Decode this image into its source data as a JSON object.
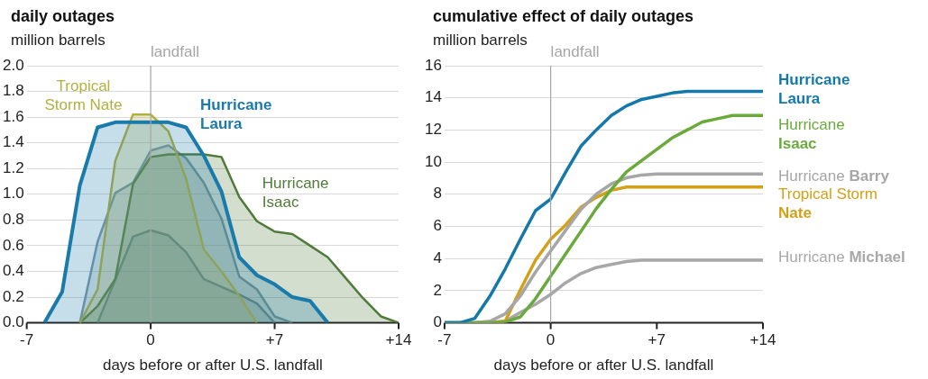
{
  "chart_data": [
    {
      "type": "area",
      "title": "daily outages",
      "ylabel": "million barrels",
      "xlabel": "days before or after U.S. landfall",
      "xlim": [
        -7,
        14
      ],
      "xticks": [
        -7,
        0,
        {
          "value": 7,
          "label": "+7"
        },
        {
          "value": 14,
          "label": "+14"
        }
      ],
      "ylim": [
        0,
        2
      ],
      "yticks": [
        {
          "value": 0,
          "label": "0.0"
        },
        {
          "value": 0.2,
          "label": "0.2"
        },
        {
          "value": 0.4,
          "label": "0.4"
        },
        {
          "value": 0.6,
          "label": "0.6"
        },
        {
          "value": 0.8,
          "label": "0.8"
        },
        {
          "value": 1,
          "label": "1.0"
        },
        {
          "value": 1.2,
          "label": "1.2"
        },
        {
          "value": 1.4,
          "label": "1.4"
        },
        {
          "value": 1.6,
          "label": "1.6"
        },
        {
          "value": 1.8,
          "label": "1.8"
        },
        {
          "value": 2,
          "label": "2.0"
        }
      ],
      "grid": "y",
      "legend": false,
      "ref_lines": [
        {
          "axis": "x",
          "value": 0,
          "label": "landfall",
          "color": "#a6a6a6"
        }
      ],
      "series": [
        {
          "name": "Hurricane Laura",
          "color": "#1a7bab",
          "x": [
            -6,
            -5,
            -4,
            -3,
            -2,
            -1,
            0,
            1,
            2,
            3,
            4,
            5,
            6,
            7,
            8,
            9,
            10
          ],
          "values": [
            0,
            0.24,
            1.07,
            1.52,
            1.56,
            1.56,
            1.56,
            1.56,
            1.52,
            1.3,
            1.02,
            0.51,
            0.37,
            0.3,
            0.2,
            0.17,
            0
          ]
        },
        {
          "name": "Tropical Storm Nate",
          "color": "#b3b040",
          "x": [
            -4,
            -3,
            -2,
            -1,
            0,
            1,
            2,
            3,
            4,
            5,
            6
          ],
          "values": [
            0,
            0.26,
            1.26,
            1.62,
            1.62,
            1.49,
            1.12,
            0.57,
            0.4,
            0.21,
            0
          ]
        },
        {
          "name": "Hurricane Isaac",
          "color": "#4f7a3a",
          "x": [
            -4,
            -3,
            -2,
            -1,
            0,
            1,
            2,
            3,
            4,
            5,
            6,
            7,
            8,
            9,
            10,
            11,
            12,
            13,
            14
          ],
          "values": [
            0,
            0.13,
            0.34,
            1.08,
            1.29,
            1.31,
            1.31,
            1.31,
            1.29,
            0.98,
            0.79,
            0.71,
            0.69,
            0.6,
            0.51,
            0.35,
            0.19,
            0.05,
            0
          ]
        },
        {
          "color": "#7d98a8",
          "x": [
            -4,
            -3,
            -2,
            -1,
            0,
            1,
            2,
            3,
            4,
            5,
            6,
            7,
            8
          ],
          "values": [
            0,
            0.63,
            1.01,
            1.09,
            1.34,
            1.38,
            1.28,
            1.09,
            0.81,
            0.36,
            0.26,
            0.05,
            0
          ]
        },
        {
          "color": "#6f8a92",
          "x": [
            -3,
            -1,
            0,
            1,
            2,
            3,
            4,
            5,
            6,
            7
          ],
          "values": [
            0,
            0.67,
            0.72,
            0.68,
            0.55,
            0.34,
            0.28,
            0.22,
            0.15,
            0
          ]
        }
      ]
    },
    {
      "type": "line",
      "title": "cumulative effect of daily outages",
      "ylabel": "million barrels",
      "xlabel": "days before or after U.S. landfall",
      "x": [
        -7,
        -6,
        -5,
        -4,
        -3,
        -2,
        -1,
        0,
        1,
        2,
        3,
        4,
        5,
        6,
        7,
        8,
        9,
        10,
        11,
        12,
        13,
        14
      ],
      "xlim": [
        -7,
        14
      ],
      "xticks": [
        {
          "value": -7,
          "label": "-7"
        },
        {
          "value": 0,
          "label": "0"
        },
        {
          "value": 7,
          "label": "+7"
        },
        {
          "value": 14,
          "label": "+14"
        }
      ],
      "ylim": [
        0,
        16
      ],
      "yticks": [
        0,
        2,
        4,
        6,
        8,
        10,
        12,
        14,
        16
      ],
      "grid": "y",
      "legend": false,
      "ref_lines": [
        {
          "axis": "x",
          "value": 0,
          "label": "landfall",
          "color": "#a6a6a6"
        }
      ],
      "series": [
        {
          "name": "Hurricane Laura",
          "color": "#1479a8",
          "values": [
            0,
            0,
            0.28,
            1.67,
            3.35,
            5.2,
            6.98,
            7.7,
            9.4,
            11,
            12,
            12.9,
            13.5,
            13.9,
            14.1,
            14.3,
            14.4,
            14.4,
            14.4,
            14.4,
            14.4,
            14.4
          ]
        },
        {
          "name": "Hurricane Isaac",
          "color": "#6aaa3c",
          "values": [
            0,
            0,
            0,
            0,
            0.05,
            0.37,
            1.5,
            2.9,
            4.3,
            5.7,
            7.1,
            8.3,
            9.4,
            10.1,
            10.8,
            11.5,
            12,
            12.5,
            12.7,
            12.9,
            12.9,
            12.9
          ]
        },
        {
          "name": "Hurricane Barry",
          "color": "#a6a6a6",
          "values": [
            0,
            0,
            0,
            0.1,
            0.56,
            1.67,
            3.16,
            4.47,
            5.77,
            7.07,
            8,
            8.65,
            9.02,
            9.2,
            9.27,
            9.27,
            9.27,
            9.27,
            9.27,
            9.27,
            9.27,
            9.27
          ]
        },
        {
          "name": "Tropical Storm Nate",
          "color": "#d4a017",
          "values": [
            null,
            null,
            0,
            0,
            0.1,
            2.05,
            3.9,
            5.2,
            6.1,
            7.2,
            7.8,
            8.25,
            8.45,
            8.45,
            8.45,
            8.45,
            8.45,
            8.45,
            8.45,
            8.45,
            8.45,
            8.45
          ]
        },
        {
          "name": "Hurricane Michael",
          "color": "#a8a8a8",
          "values": [
            0,
            0,
            0,
            0,
            0.1,
            0.65,
            1.15,
            1.77,
            2.5,
            3.07,
            3.44,
            3.63,
            3.81,
            3.9,
            3.9,
            3.9,
            3.9,
            3.9,
            3.9,
            3.9,
            3.9,
            3.9
          ]
        }
      ]
    }
  ]
}
